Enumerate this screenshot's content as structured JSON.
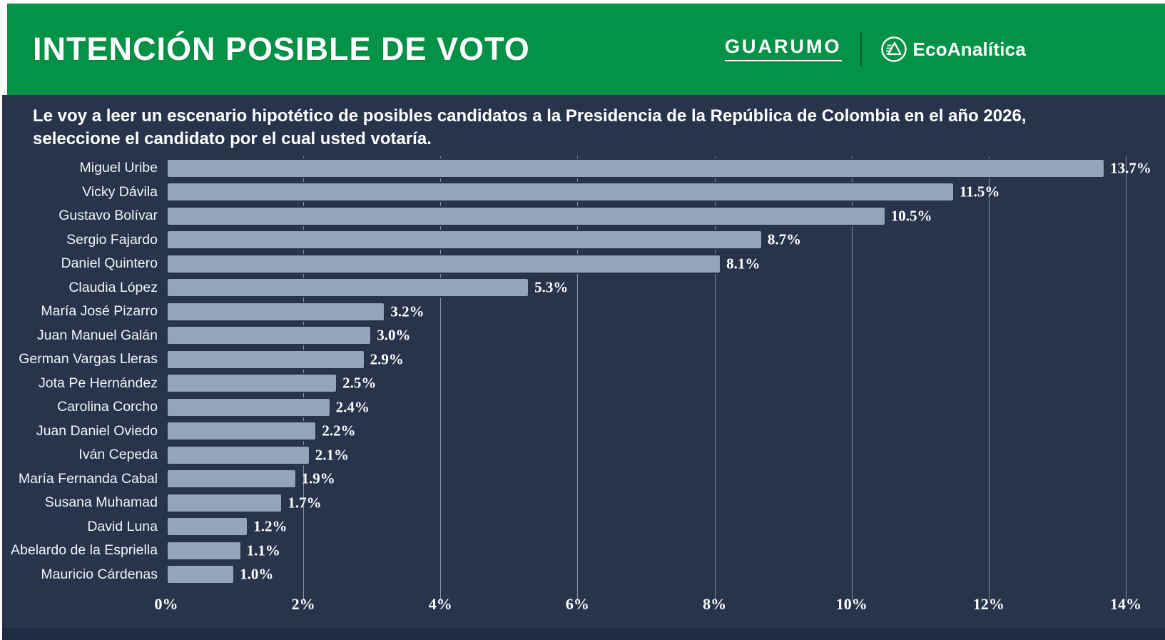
{
  "header": {
    "title": "INTENCIÓN POSIBLE DE VOTO",
    "brand_left": "GUARUMO",
    "brand_right": "EcoAnalítica",
    "header_color": "#049247"
  },
  "subtitle": {
    "line1": "Le voy a leer un escenario hipotético de posibles candidatos a la Presidencia de la República de Colombia en el año 2026,",
    "line2": "seleccione el candidato por el cual usted votaría."
  },
  "chart_data": {
    "type": "bar",
    "orientation": "horizontal",
    "title": "INTENCIÓN POSIBLE DE VOTO",
    "categories": [
      "Miguel Uribe",
      "Vicky Dávila",
      "Gustavo Bolívar",
      "Sergio Fajardo",
      "Daniel Quintero",
      "Claudia López",
      "María José Pizarro",
      "Juan Manuel Galán",
      "German Vargas Lleras",
      "Jota Pe Hernández",
      "Carolina Corcho",
      "Juan Daniel Oviedo",
      "Iván Cepeda",
      "María Fernanda Cabal",
      "Susana Muhamad",
      "David Luna",
      "Abelardo de la Espriella",
      "Mauricio Cárdenas"
    ],
    "values": [
      13.7,
      11.5,
      10.5,
      8.7,
      8.1,
      5.3,
      3.2,
      3.0,
      2.9,
      2.5,
      2.4,
      2.2,
      2.1,
      1.9,
      1.7,
      1.2,
      1.1,
      1.0
    ],
    "value_suffix": "%",
    "x_ticks": [
      "0%",
      "2%",
      "4%",
      "6%",
      "8%",
      "10%",
      "12%",
      "14%"
    ],
    "xlim": [
      0,
      14
    ],
    "grid": "vertical",
    "legend": "none",
    "bar_color": "#93a6b7",
    "background_color": "#28344c",
    "label_color": "#ffffff"
  }
}
